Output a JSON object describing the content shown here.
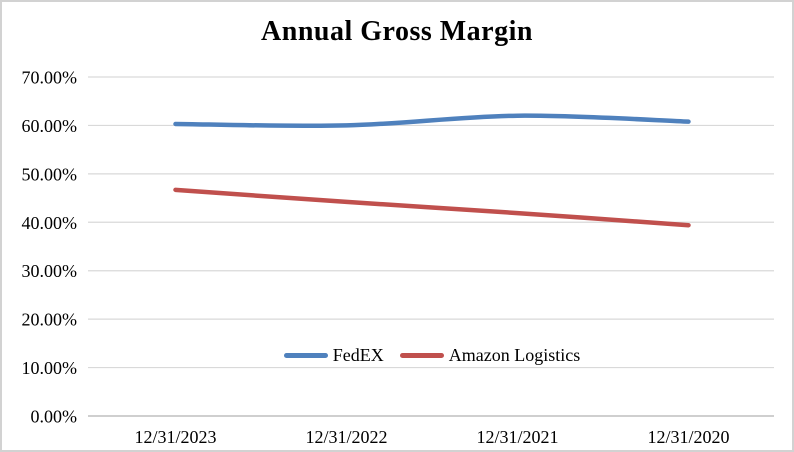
{
  "chart_data": {
    "type": "line",
    "title": "Annual Gross Margin",
    "categories": [
      "12/31/2023",
      "12/31/2022",
      "12/31/2021",
      "12/31/2020"
    ],
    "series": [
      {
        "name": "FedEX",
        "color": "#4F81BD",
        "values": [
          60.3,
          60.0,
          62.0,
          60.8
        ]
      },
      {
        "name": "Amazon Logistics",
        "color": "#C0504D",
        "values": [
          46.7,
          44.2,
          41.9,
          39.4
        ]
      }
    ],
    "xlabel": "",
    "ylabel": "",
    "ylim": [
      0,
      70
    ],
    "ytick_step": 10,
    "ytick_labels": [
      "0.00%",
      "10.00%",
      "20.00%",
      "30.00%",
      "40.00%",
      "50.00%",
      "60.00%",
      "70.00%"
    ],
    "grid": true,
    "smoothed_lines": true,
    "legend_position": "inside-bottom-center",
    "colors": {
      "gridline": "#D9D9D9",
      "axis_line": "#BFBFBF",
      "text": "#000000",
      "frame_border": "#D2D2D2",
      "background": "#FFFFFF"
    }
  }
}
